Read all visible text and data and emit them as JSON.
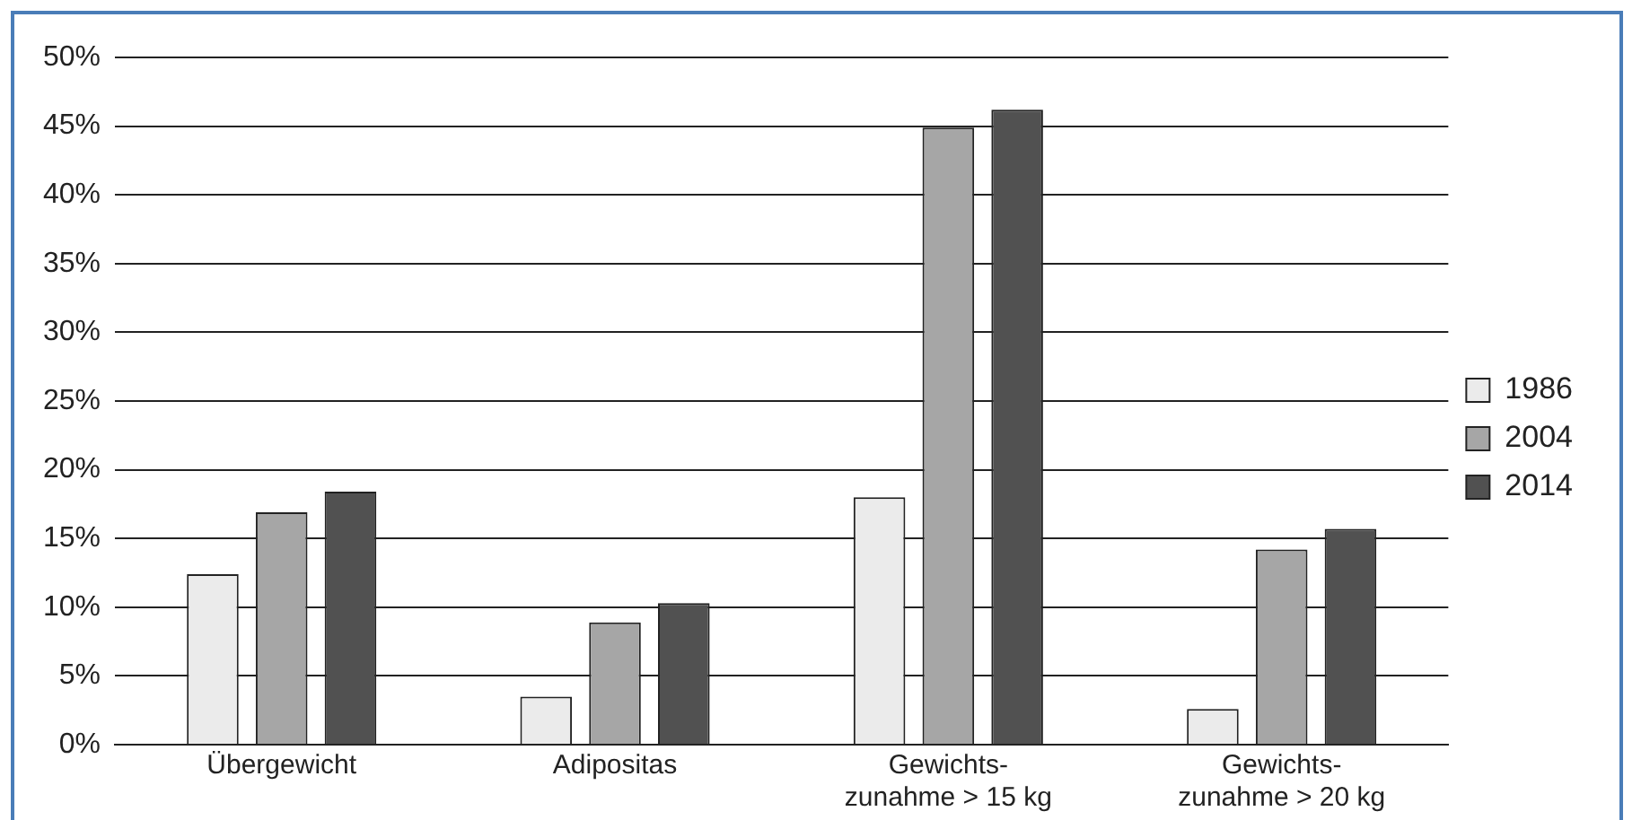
{
  "chart_data": {
    "type": "bar",
    "categories": [
      "Übergewicht",
      "Adipositas",
      "Gewichts-\nzunahme > 15 kg",
      "Gewichts-\nzunahme > 20 kg"
    ],
    "series": [
      {
        "name": "1986",
        "color": "#ebebeb",
        "values": [
          12.4,
          3.5,
          18.0,
          2.6
        ]
      },
      {
        "name": "2004",
        "color": "#a6a6a6",
        "values": [
          16.9,
          8.9,
          44.9,
          14.2
        ]
      },
      {
        "name": "2014",
        "color": "#515151",
        "values": [
          18.4,
          10.3,
          46.2,
          15.7
        ]
      }
    ],
    "ylim": [
      0,
      50
    ],
    "yticks": [
      {
        "value": 0,
        "label": "0%"
      },
      {
        "value": 5,
        "label": "5%"
      },
      {
        "value": 10,
        "label": "10%"
      },
      {
        "value": 15,
        "label": "15%"
      },
      {
        "value": 20,
        "label": "20%"
      },
      {
        "value": 25,
        "label": "25%"
      },
      {
        "value": 30,
        "label": "30%"
      },
      {
        "value": 35,
        "label": "35%"
      },
      {
        "value": 40,
        "label": "40%"
      },
      {
        "value": 45,
        "label": "45%"
      },
      {
        "value": 50,
        "label": "50%"
      }
    ],
    "grid": "y",
    "legend": "right"
  }
}
